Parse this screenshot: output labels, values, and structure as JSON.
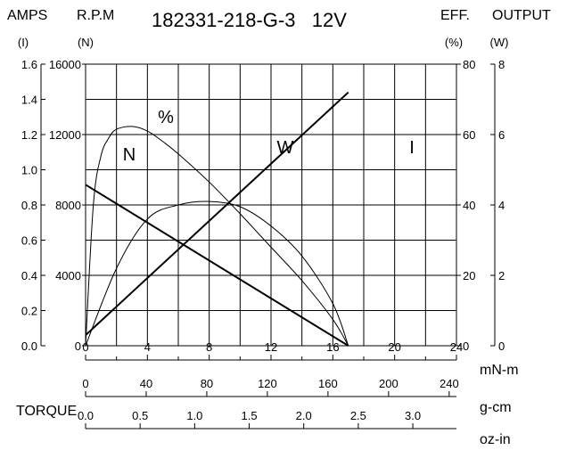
{
  "chart_data": {
    "type": "line",
    "title": "182331-218-G-3   12V",
    "left_axes": [
      {
        "header": "AMPS",
        "unit": "(I)",
        "ticks": [
          "1.6",
          "1.4",
          "1.2",
          "1.0",
          "0.8",
          "0.6",
          "0.4",
          "0.2",
          "0.0"
        ],
        "range": [
          0,
          1.6
        ]
      },
      {
        "header": "R.P.M",
        "unit": "(N)",
        "ticks": [
          "16000",
          "12000",
          "8000",
          "4000",
          "0"
        ],
        "range": [
          0,
          16000
        ]
      }
    ],
    "right_axes": [
      {
        "header": "EFF.",
        "unit": "(%)",
        "ticks": [
          "80",
          "60",
          "40",
          "20",
          "0"
        ],
        "range": [
          0,
          80
        ]
      },
      {
        "header": "OUTPUT",
        "unit": "(W)",
        "ticks": [
          "8",
          "6",
          "4",
          "2",
          "0"
        ],
        "range": [
          0,
          8
        ]
      }
    ],
    "bottom_axes": [
      {
        "unit": "mN-m",
        "ticks": [
          "0",
          "4",
          "8",
          "12",
          "16",
          "20",
          "24"
        ],
        "range": [
          0,
          24
        ]
      },
      {
        "unit": "g-cm",
        "ticks": [
          "0",
          "40",
          "80",
          "120",
          "160",
          "200",
          "240"
        ],
        "range": [
          0,
          244.8
        ]
      },
      {
        "unit": "oz-in",
        "ticks": [
          "0.0",
          "0.5",
          "1.0",
          "1.5",
          "2.0",
          "2.5",
          "3.0"
        ],
        "range": [
          0,
          3.4
        ]
      }
    ],
    "torque_label": "TORQUE",
    "x_range": [
      0,
      24
    ],
    "grid": true,
    "series": [
      {
        "name": "N",
        "label": "N",
        "x": [
          0,
          17
        ],
        "y": [
          9150,
          0
        ]
      },
      {
        "name": "I",
        "label": "I",
        "x": [
          0,
          17
        ],
        "y": [
          0.06,
          1.44
        ]
      },
      {
        "name": "%",
        "label": "%",
        "x": [
          0,
          0.5,
          1,
          1.5,
          2,
          3,
          4,
          5,
          6,
          8,
          10,
          12,
          14,
          16,
          17
        ],
        "y": [
          0,
          40,
          54,
          59,
          61.5,
          62.3,
          61,
          58,
          54.5,
          46.5,
          37.5,
          28,
          18.5,
          7.5,
          0
        ]
      },
      {
        "name": "W",
        "label": "W",
        "x": [
          0,
          2,
          4,
          6,
          8,
          10,
          12,
          14,
          16,
          17
        ],
        "y": [
          0,
          2.2,
          3.6,
          4.0,
          4.1,
          3.95,
          3.4,
          2.55,
          1.2,
          0
        ]
      }
    ]
  }
}
